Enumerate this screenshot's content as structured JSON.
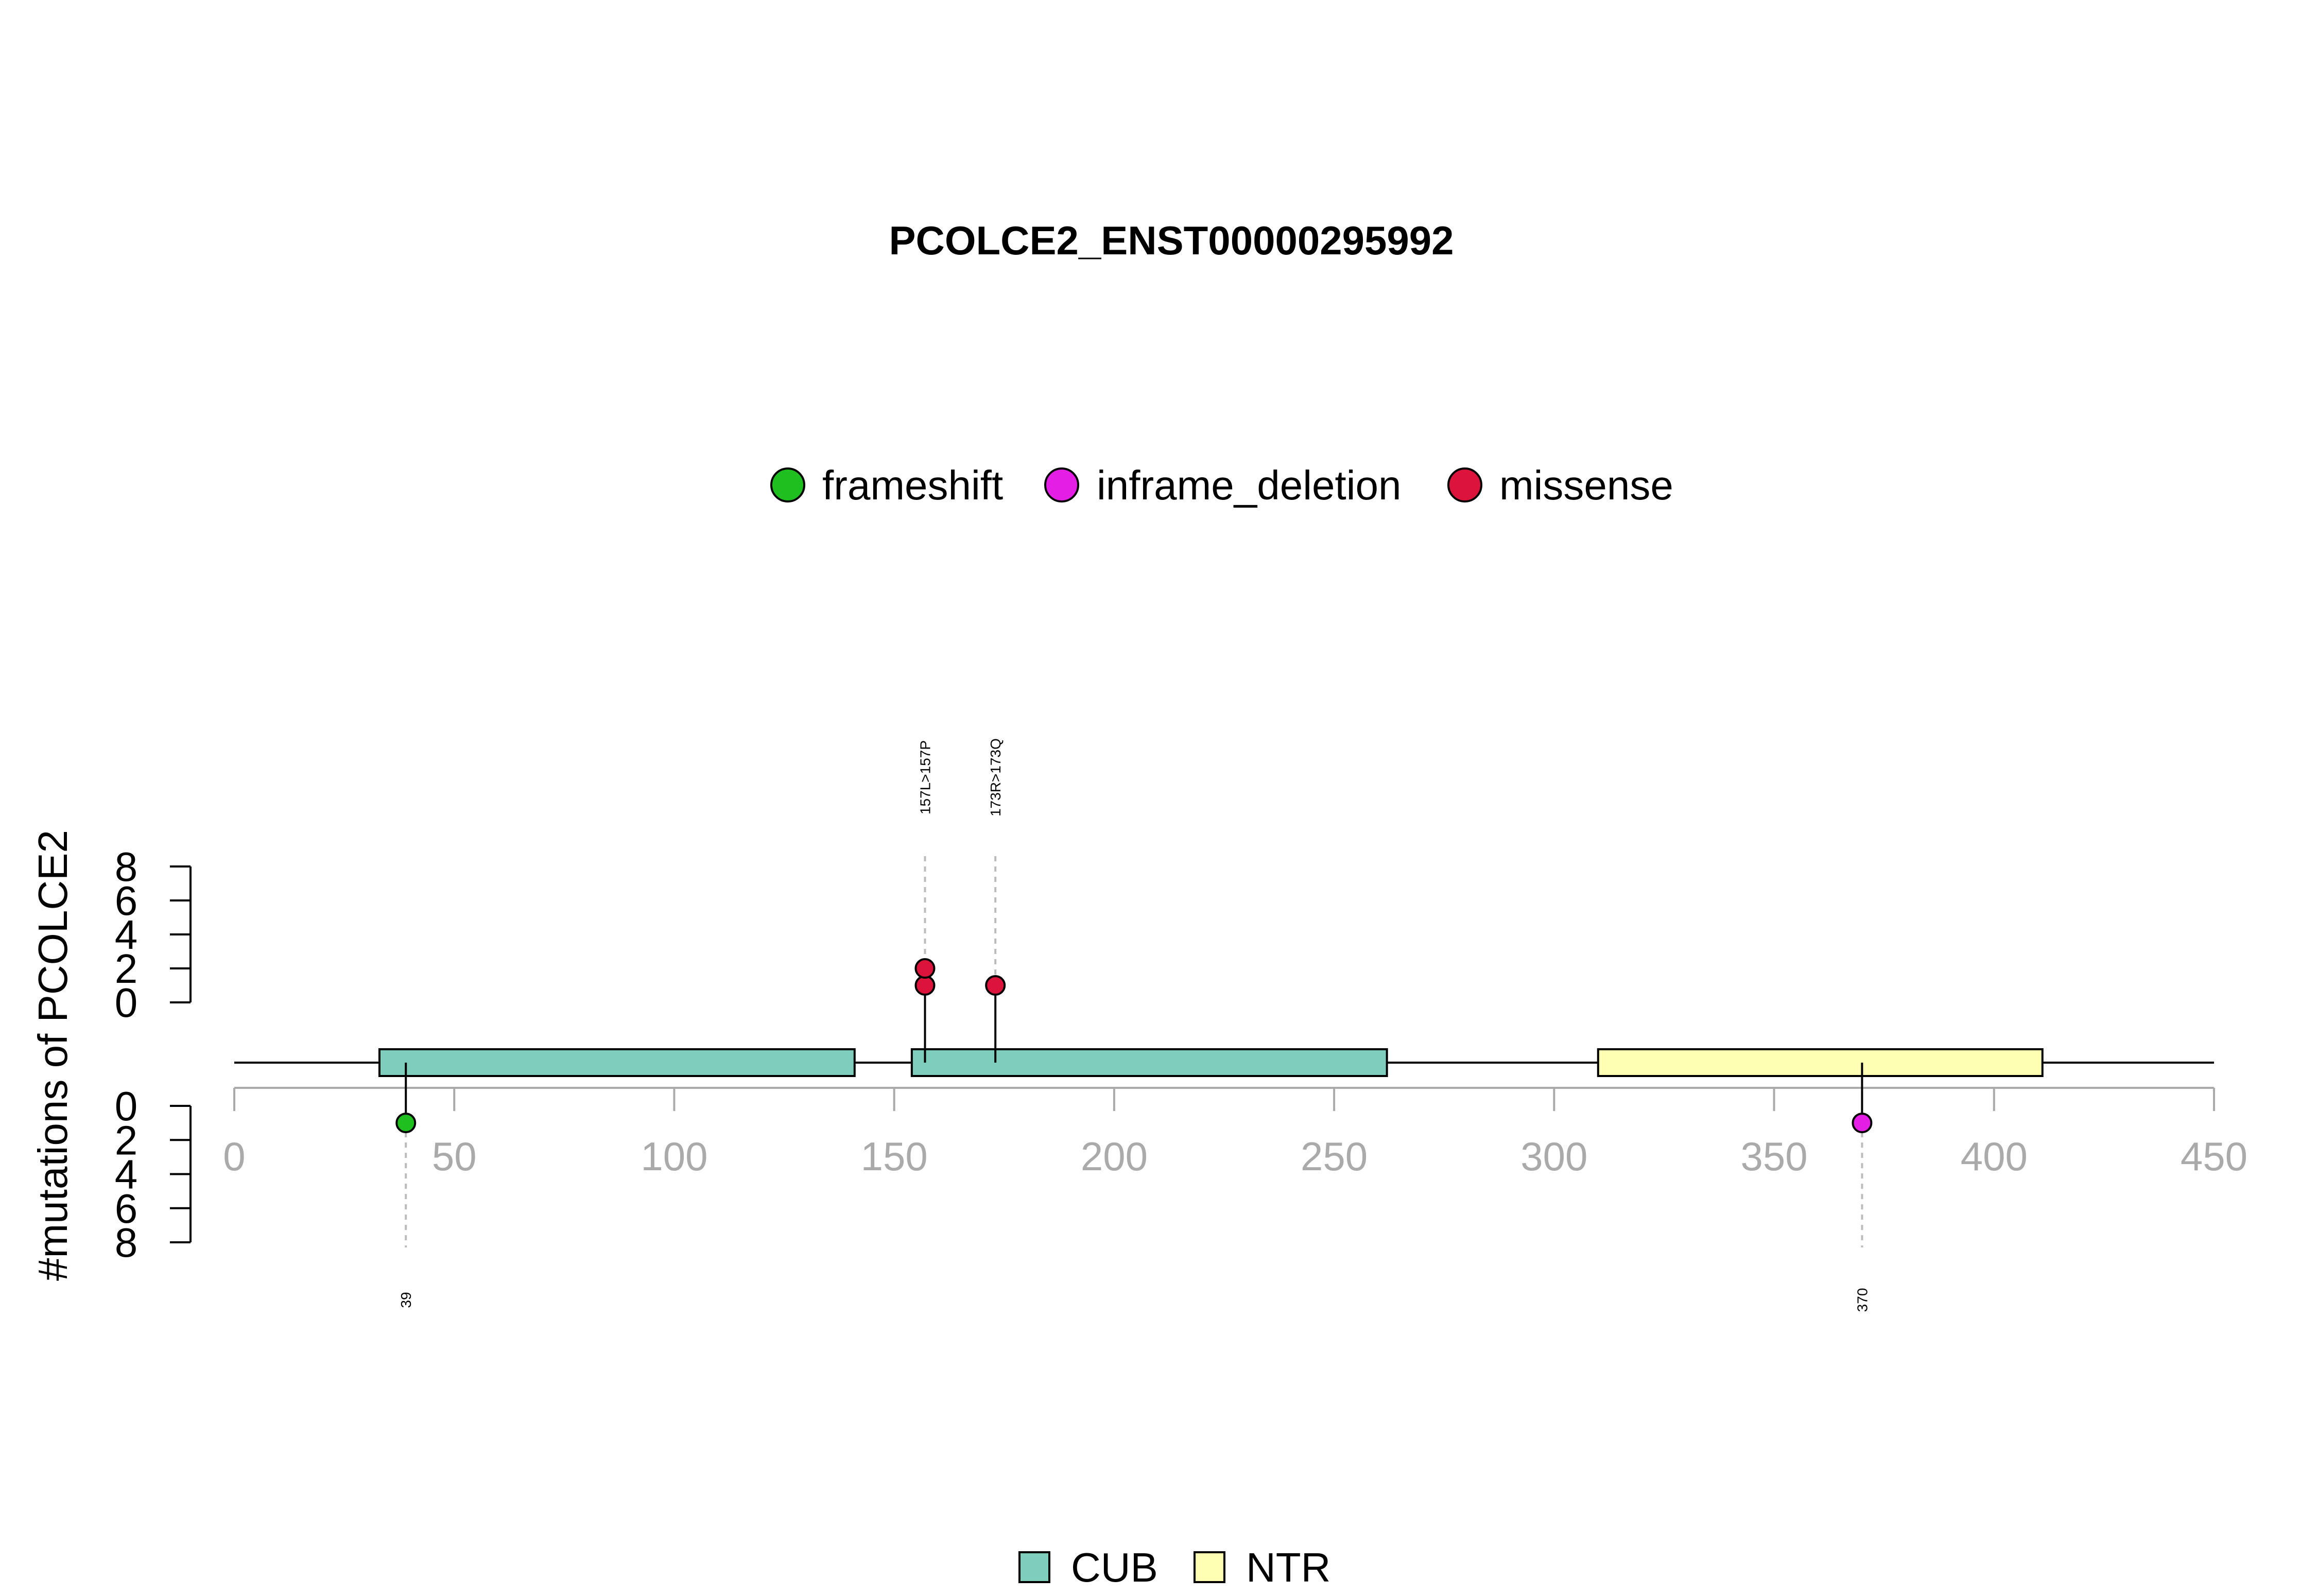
{
  "chart_data": {
    "type": "lollipop",
    "title": "PCOLCE2_ENST00000295992",
    "ylabel": "#mutations of PCOLCE2",
    "xlim": [
      0,
      450
    ],
    "x_ticks": [
      0,
      50,
      100,
      150,
      200,
      250,
      300,
      350,
      400,
      450
    ],
    "y_ticks": [
      0,
      2,
      4,
      6,
      8
    ],
    "ylim": [
      0,
      8
    ],
    "mutation_types": [
      {
        "name": "frameshift",
        "color": "#1fbf1f"
      },
      {
        "name": "inframe_deletion",
        "color": "#e51ee5"
      },
      {
        "name": "missense",
        "color": "#dc143c"
      }
    ],
    "domains": [
      {
        "name": "CUB",
        "start": 33,
        "end": 141,
        "color": "#7fcdbb"
      },
      {
        "name": "CUB",
        "start": 154,
        "end": 262,
        "color": "#7fcdbb"
      },
      {
        "name": "NTR",
        "start": 310,
        "end": 411,
        "color": "#ffffb3"
      }
    ],
    "domain_legend": [
      {
        "name": "CUB",
        "color": "#7fcdbb"
      },
      {
        "name": "NTR",
        "color": "#ffffb3"
      }
    ],
    "mutations_top": [
      {
        "position": 157,
        "label": "157L>157P",
        "type": "missense",
        "count": 2
      },
      {
        "position": 173,
        "label": "173R>173Q",
        "type": "missense",
        "count": 1
      }
    ],
    "mutations_bottom": [
      {
        "position": 39,
        "label": "39",
        "type": "frameshift",
        "count": 1
      },
      {
        "position": 370,
        "label": "370",
        "type": "inframe_deletion",
        "count": 1
      }
    ]
  }
}
